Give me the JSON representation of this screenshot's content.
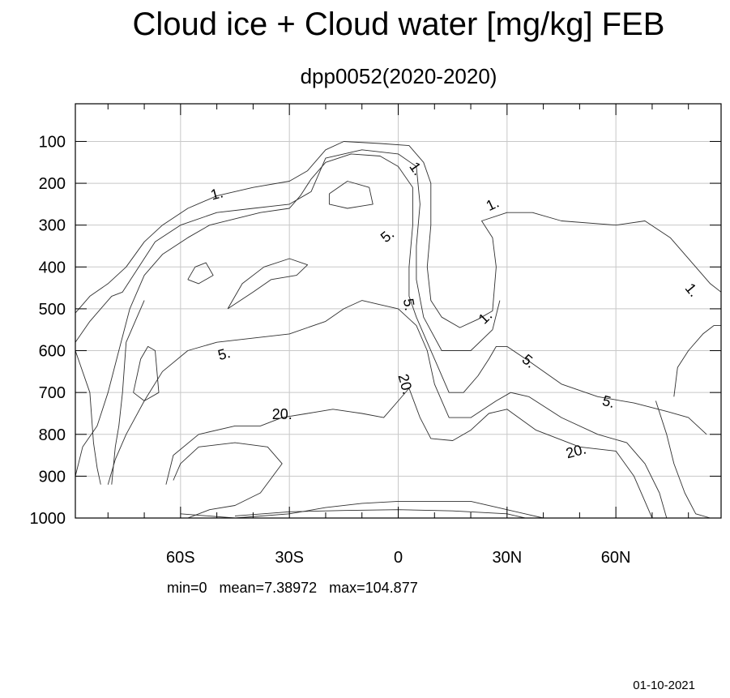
{
  "chart_data": {
    "type": "contour",
    "title": "Cloud ice + Cloud water [mg/kg] FEB",
    "subtitle": "dpp0052(2020-2020)",
    "x_ticks": [
      {
        "value": -60,
        "label": "60S"
      },
      {
        "value": -30,
        "label": "30S"
      },
      {
        "value": 0,
        "label": "0"
      },
      {
        "value": 30,
        "label": "30N"
      },
      {
        "value": 60,
        "label": "60N"
      }
    ],
    "y_ticks": [
      {
        "value": 100,
        "label": "100"
      },
      {
        "value": 200,
        "label": "200"
      },
      {
        "value": 300,
        "label": "300"
      },
      {
        "value": 400,
        "label": "400"
      },
      {
        "value": 500,
        "label": "500"
      },
      {
        "value": 600,
        "label": "600"
      },
      {
        "value": 700,
        "label": "700"
      },
      {
        "value": 800,
        "label": "800"
      },
      {
        "value": 900,
        "label": "900"
      },
      {
        "value": 1000,
        "label": "1000"
      }
    ],
    "xlim": [
      -89,
      89
    ],
    "ylim": [
      10,
      1000
    ],
    "y_inverted": true,
    "grid": true,
    "contour_levels": [
      1,
      5,
      20
    ],
    "contour_labels": [
      {
        "text": "1.",
        "x": -50,
        "y": 225,
        "angle": -15
      },
      {
        "text": "1.",
        "x": 5,
        "y": 165,
        "angle": 55
      },
      {
        "text": "1.",
        "x": 26,
        "y": 250,
        "angle": -25
      },
      {
        "text": "1.",
        "x": 81,
        "y": 455,
        "angle": 50
      },
      {
        "text": "1.",
        "x": 24,
        "y": 520,
        "angle": -45
      },
      {
        "text": "5.",
        "x": -3,
        "y": 325,
        "angle": -40
      },
      {
        "text": "5.",
        "x": 3,
        "y": 490,
        "angle": 80
      },
      {
        "text": "5.",
        "x": -48,
        "y": 608,
        "angle": -15
      },
      {
        "text": "5.",
        "x": 36,
        "y": 625,
        "angle": 40
      },
      {
        "text": "5.",
        "x": 58,
        "y": 722,
        "angle": 15
      },
      {
        "text": "20.",
        "x": 2,
        "y": 680,
        "angle": 75
      },
      {
        "text": "20.",
        "x": -32,
        "y": 752,
        "angle": 0
      },
      {
        "text": "20.",
        "x": 49,
        "y": 840,
        "angle": -15
      }
    ],
    "contours": [
      {
        "level": 1,
        "points": [
          [
            -89,
            510
          ],
          [
            -85,
            470
          ],
          [
            -80,
            440
          ],
          [
            -75,
            400
          ],
          [
            -70,
            340
          ],
          [
            -65,
            300
          ],
          [
            -58,
            260
          ],
          [
            -50,
            230
          ],
          [
            -40,
            210
          ],
          [
            -30,
            195
          ],
          [
            -25,
            170
          ],
          [
            -20,
            120
          ],
          [
            -15,
            100
          ],
          [
            -5,
            105
          ],
          [
            3,
            110
          ],
          [
            7,
            150
          ],
          [
            9,
            200
          ],
          [
            9,
            300
          ],
          [
            8,
            400
          ],
          [
            9,
            480
          ],
          [
            12,
            520
          ],
          [
            17,
            545
          ],
          [
            22,
            525
          ],
          [
            26,
            505
          ],
          [
            27,
            400
          ],
          [
            26,
            330
          ],
          [
            23,
            290
          ],
          [
            30,
            270
          ],
          [
            37,
            270
          ],
          [
            45,
            290
          ],
          [
            60,
            300
          ],
          [
            68,
            290
          ],
          [
            75,
            330
          ],
          [
            82,
            400
          ],
          [
            86,
            440
          ],
          [
            89,
            460
          ]
        ]
      },
      {
        "level": 1,
        "points": [
          [
            -89,
            580
          ],
          [
            -85,
            530
          ],
          [
            -79,
            470
          ],
          [
            -76,
            460
          ],
          [
            -73,
            420
          ],
          [
            -67,
            340
          ],
          [
            -60,
            300
          ],
          [
            -50,
            270
          ],
          [
            -40,
            260
          ],
          [
            -30,
            250
          ],
          [
            -24,
            220
          ],
          [
            -20,
            140
          ],
          [
            -10,
            120
          ],
          [
            0,
            130
          ],
          [
            5,
            160
          ],
          [
            6,
            250
          ],
          [
            5,
            350
          ],
          [
            5,
            430
          ],
          [
            7,
            520
          ],
          [
            12,
            600
          ],
          [
            20,
            600
          ],
          [
            26,
            550
          ],
          [
            28,
            480
          ]
        ]
      },
      {
        "level": 1,
        "points": [
          [
            -89,
            600
          ],
          [
            -85,
            700
          ],
          [
            -84,
            820
          ],
          [
            -83,
            880
          ],
          [
            -82,
            920
          ]
        ]
      },
      {
        "level": 1,
        "points": [
          [
            -79,
            920
          ],
          [
            -78,
            830
          ],
          [
            -77,
            780
          ],
          [
            -76,
            700
          ],
          [
            -75,
            580
          ],
          [
            -72,
            520
          ],
          [
            -70,
            480
          ]
        ]
      },
      {
        "level": 1,
        "points": [
          [
            -73,
            700
          ],
          [
            -71,
            620
          ],
          [
            -69,
            590
          ],
          [
            -67,
            600
          ],
          [
            -66,
            700
          ],
          [
            -70,
            720
          ],
          [
            -73,
            700
          ]
        ]
      },
      {
        "level": 1,
        "points": [
          [
            -58,
            430
          ],
          [
            -56,
            400
          ],
          [
            -53,
            390
          ],
          [
            -51,
            420
          ],
          [
            -55,
            440
          ],
          [
            -58,
            430
          ]
        ]
      },
      {
        "level": 1,
        "points": [
          [
            -47,
            500
          ],
          [
            -43,
            440
          ],
          [
            -37,
            400
          ],
          [
            -30,
            380
          ],
          [
            -25,
            395
          ],
          [
            -28,
            420
          ],
          [
            -35,
            430
          ],
          [
            -40,
            460
          ],
          [
            -47,
            500
          ]
        ]
      },
      {
        "level": 1,
        "points": [
          [
            71,
            720
          ],
          [
            74,
            800
          ],
          [
            76,
            870
          ],
          [
            79,
            940
          ],
          [
            82,
            990
          ],
          [
            86,
            1000
          ]
        ]
      },
      {
        "level": 1,
        "points": [
          [
            76,
            710
          ],
          [
            77,
            640
          ],
          [
            80,
            600
          ],
          [
            84,
            560
          ],
          [
            87,
            540
          ],
          [
            89,
            540
          ]
        ]
      },
      {
        "level": 5,
        "points": [
          [
            -89,
            900
          ],
          [
            -87,
            830
          ],
          [
            -83,
            780
          ],
          [
            -80,
            700
          ],
          [
            -77,
            600
          ],
          [
            -74,
            500
          ],
          [
            -70,
            420
          ],
          [
            -65,
            370
          ],
          [
            -58,
            330
          ],
          [
            -52,
            300
          ],
          [
            -45,
            285
          ],
          [
            -38,
            270
          ],
          [
            -30,
            260
          ],
          [
            -27,
            230
          ],
          [
            -24,
            190
          ],
          [
            -20,
            150
          ],
          [
            -13,
            130
          ],
          [
            -5,
            135
          ],
          [
            0,
            160
          ],
          [
            4,
            210
          ],
          [
            4,
            300
          ],
          [
            3,
            400
          ],
          [
            3,
            470
          ],
          [
            5,
            520
          ],
          [
            8,
            580
          ],
          [
            11,
            640
          ],
          [
            14,
            700
          ],
          [
            18,
            700
          ],
          [
            22,
            660
          ],
          [
            25,
            620
          ],
          [
            27,
            590
          ],
          [
            30,
            590
          ],
          [
            36,
            625
          ],
          [
            45,
            680
          ],
          [
            55,
            710
          ],
          [
            65,
            725
          ],
          [
            74,
            745
          ],
          [
            80,
            760
          ],
          [
            85,
            800
          ]
        ]
      },
      {
        "level": 5,
        "points": [
          [
            -19,
            225
          ],
          [
            -14,
            195
          ],
          [
            -8,
            210
          ],
          [
            -7,
            250
          ],
          [
            -14,
            260
          ],
          [
            -19,
            250
          ],
          [
            -19,
            225
          ]
        ]
      },
      {
        "level": 5,
        "points": [
          [
            -80,
            920
          ],
          [
            -78,
            860
          ],
          [
            -75,
            800
          ],
          [
            -70,
            720
          ],
          [
            -65,
            650
          ],
          [
            -58,
            600
          ],
          [
            -50,
            580
          ],
          [
            -40,
            570
          ],
          [
            -30,
            560
          ],
          [
            -20,
            530
          ],
          [
            -15,
            500
          ],
          [
            -10,
            480
          ],
          [
            -5,
            490
          ],
          [
            0,
            500
          ],
          [
            5,
            540
          ],
          [
            8,
            600
          ],
          [
            10,
            680
          ],
          [
            14,
            760
          ],
          [
            20,
            760
          ],
          [
            27,
            720
          ],
          [
            31,
            700
          ],
          [
            36,
            710
          ],
          [
            45,
            760
          ],
          [
            55,
            800
          ],
          [
            63,
            820
          ],
          [
            68,
            870
          ],
          [
            72,
            940
          ],
          [
            74,
            1000
          ]
        ]
      },
      {
        "level": 20,
        "points": [
          [
            -64,
            920
          ],
          [
            -62,
            850
          ],
          [
            -55,
            800
          ],
          [
            -45,
            780
          ],
          [
            -38,
            780
          ],
          [
            -32,
            760
          ],
          [
            -25,
            750
          ],
          [
            -18,
            740
          ],
          [
            -10,
            750
          ],
          [
            -4,
            760
          ],
          [
            0,
            720
          ],
          [
            3,
            690
          ],
          [
            6,
            760
          ],
          [
            9,
            810
          ],
          [
            15,
            815
          ],
          [
            20,
            790
          ],
          [
            25,
            750
          ],
          [
            30,
            740
          ],
          [
            38,
            790
          ],
          [
            50,
            830
          ],
          [
            60,
            840
          ],
          [
            65,
            900
          ],
          [
            68,
            960
          ],
          [
            70,
            1000
          ]
        ]
      },
      {
        "level": 20,
        "points": [
          [
            -58,
            1000
          ],
          [
            -52,
            980
          ],
          [
            -45,
            970
          ],
          [
            -38,
            940
          ],
          [
            -32,
            870
          ],
          [
            -36,
            830
          ],
          [
            -45,
            820
          ],
          [
            -55,
            830
          ],
          [
            -60,
            870
          ],
          [
            -62,
            910
          ]
        ]
      },
      {
        "level": 20,
        "points": [
          [
            -60,
            990
          ],
          [
            -45,
            1000
          ],
          [
            -30,
            990
          ],
          [
            -20,
            975
          ],
          [
            -10,
            965
          ],
          [
            0,
            960
          ],
          [
            10,
            960
          ],
          [
            20,
            960
          ],
          [
            30,
            980
          ],
          [
            40,
            1000
          ]
        ]
      },
      {
        "level": 20,
        "points": [
          [
            -45,
            995
          ],
          [
            -30,
            985
          ],
          [
            -15,
            982
          ],
          [
            0,
            980
          ],
          [
            15,
            983
          ],
          [
            30,
            990
          ],
          [
            35,
            1000
          ]
        ]
      }
    ],
    "stats": "min=0   mean=7.38972   max=104.877"
  },
  "footer": {
    "date": "01-10-2021"
  }
}
